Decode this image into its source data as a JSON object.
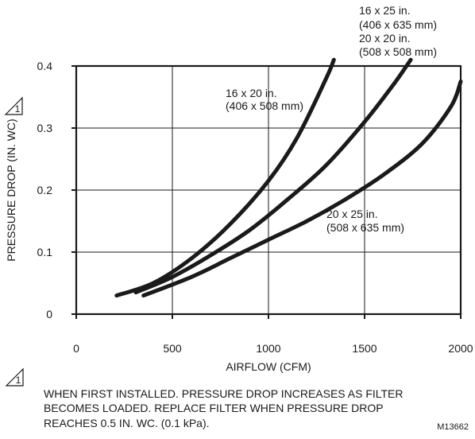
{
  "chart_data": {
    "type": "line",
    "title": "",
    "xlabel": "AIRFLOW (CFM)",
    "ylabel": "PRESSURE DROP (IN. WC)",
    "xlim": [
      0,
      2000
    ],
    "ylim": [
      0,
      0.4
    ],
    "x_ticks": [
      "0",
      "500",
      "1000",
      "1500",
      "2000"
    ],
    "y_ticks": [
      "0",
      "0.1",
      "0.2",
      "0.3",
      "0.4"
    ],
    "grid": true,
    "series": [
      {
        "name": "16 x 20 in. (406 x 508 mm)",
        "x": [
          210,
          400,
          600,
          800,
          1000,
          1150,
          1300,
          1340
        ],
        "y": [
          0.03,
          0.05,
          0.09,
          0.145,
          0.215,
          0.285,
          0.38,
          0.41
        ]
      },
      {
        "name": "16 x 25 in. (406 x 635 mm) / 20 x 20 in. (508 x 508 mm)",
        "x": [
          310,
          500,
          700,
          900,
          1100,
          1300,
          1500,
          1650,
          1740
        ],
        "y": [
          0.035,
          0.06,
          0.095,
          0.135,
          0.185,
          0.24,
          0.31,
          0.37,
          0.41
        ]
      },
      {
        "name": "20 x 25 in. (508 x 635 mm)",
        "x": [
          350,
          600,
          800,
          1000,
          1200,
          1400,
          1600,
          1800,
          1950,
          2000
        ],
        "y": [
          0.03,
          0.06,
          0.09,
          0.12,
          0.15,
          0.185,
          0.225,
          0.275,
          0.335,
          0.375
        ]
      }
    ],
    "annotations": {
      "series_1": [
        "16 x 20 in.",
        "(406 x 508 mm)"
      ],
      "series_2": [
        "16 x 25 in.",
        "(406 x 635 mm)",
        "20 x 20 in.",
        "(508 x 508 mm)"
      ],
      "series_3": [
        "20 x 25 in.",
        "(508 x 635 mm)"
      ]
    },
    "marker_label": "1",
    "footnote": [
      "WHEN FIRST INSTALLED. PRESSURE DROP INCREASES AS FILTER",
      "BECOMES LOADED. REPLACE FILTER WHEN PRESSURE DROP",
      "REACHES 0.5 IN. WC. (0.1 kPa)."
    ],
    "figure_id": "M13662"
  }
}
